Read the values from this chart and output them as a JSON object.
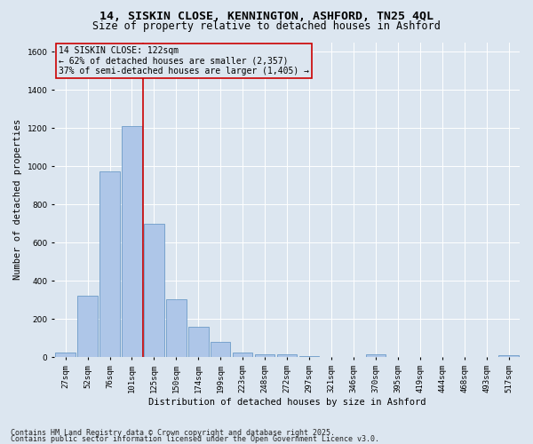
{
  "title_line1": "14, SISKIN CLOSE, KENNINGTON, ASHFORD, TN25 4QL",
  "title_line2": "Size of property relative to detached houses in Ashford",
  "xlabel": "Distribution of detached houses by size in Ashford",
  "ylabel": "Number of detached properties",
  "categories": [
    "27sqm",
    "52sqm",
    "76sqm",
    "101sqm",
    "125sqm",
    "150sqm",
    "174sqm",
    "199sqm",
    "223sqm",
    "248sqm",
    "272sqm",
    "297sqm",
    "321sqm",
    "346sqm",
    "370sqm",
    "395sqm",
    "419sqm",
    "444sqm",
    "468sqm",
    "493sqm",
    "517sqm"
  ],
  "values": [
    25,
    320,
    975,
    1210,
    700,
    305,
    160,
    80,
    25,
    15,
    15,
    5,
    0,
    0,
    15,
    0,
    0,
    0,
    0,
    0,
    10
  ],
  "bar_color": "#aec6e8",
  "bar_edge_color": "#5a8fc0",
  "vline_position": 3.5,
  "vline_color": "#cc0000",
  "annotation_title": "14 SISKIN CLOSE: 122sqm",
  "annotation_line2": "← 62% of detached houses are smaller (2,357)",
  "annotation_line3": "37% of semi-detached houses are larger (1,405) →",
  "annotation_box_color": "#cc0000",
  "ylim": [
    0,
    1650
  ],
  "yticks": [
    0,
    200,
    400,
    600,
    800,
    1000,
    1200,
    1400,
    1600
  ],
  "background_color": "#dce6f0",
  "grid_color": "#ffffff",
  "footer_line1": "Contains HM Land Registry data © Crown copyright and database right 2025.",
  "footer_line2": "Contains public sector information licensed under the Open Government Licence v3.0.",
  "title_fontsize": 9.5,
  "subtitle_fontsize": 8.5,
  "axis_label_fontsize": 7.5,
  "tick_fontsize": 6.5,
  "annotation_fontsize": 7,
  "footer_fontsize": 6
}
